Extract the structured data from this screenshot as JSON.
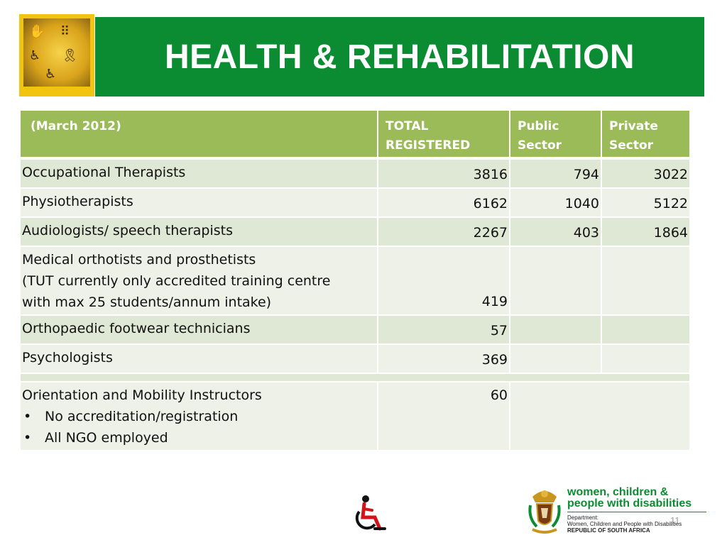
{
  "title": "HEALTH & REHABILITATION",
  "table": {
    "headers": [
      "(March 2012)",
      "TOTAL REGISTERED",
      "Public Sector",
      "Private Sector"
    ],
    "rows": [
      {
        "label": "Occupational Therapists",
        "total": "3816",
        "public": "794",
        "private": "3022"
      },
      {
        "label": "Physiotherapists",
        "total": "6162",
        "public": "1040",
        "private": "5122"
      },
      {
        "label": "Audiologists/ speech therapists",
        "total": "2267",
        "public": "403",
        "private": "1864"
      },
      {
        "label_lines": [
          "Medical orthotists and prosthetists",
          "(TUT currently only accredited training centre",
          "with max 25 students/annum intake)"
        ],
        "total": "419",
        "public": "",
        "private": ""
      },
      {
        "label": "Orthopaedic footwear technicians",
        "total": "57",
        "public": "",
        "private": ""
      },
      {
        "label": "Psychologists",
        "total": "369",
        "public": "",
        "private": ""
      }
    ],
    "last_row": {
      "label": "Orientation and Mobility Instructors",
      "bullets": [
        "No accreditation/registration",
        "All NGO employed"
      ],
      "total": "60"
    }
  },
  "footer": {
    "dept_title_line1": "women, children &",
    "dept_title_line2": "people with disabilities",
    "dept_sub1": "Department:",
    "dept_sub2": "Women, Children and People with Disabilities",
    "dept_sub3": "REPUBLIC OF SOUTH AFRICA",
    "page_number": "11"
  },
  "colors": {
    "title_green": "#0c8c32",
    "header_green": "#9bbb59",
    "row_dark": "#dfe7d5",
    "row_light": "#edf1e8",
    "logo_yellow": "#f1c40f"
  },
  "icons": [
    "disability-collage-logo",
    "wheelchair-icon",
    "coat-of-arms-icon"
  ]
}
